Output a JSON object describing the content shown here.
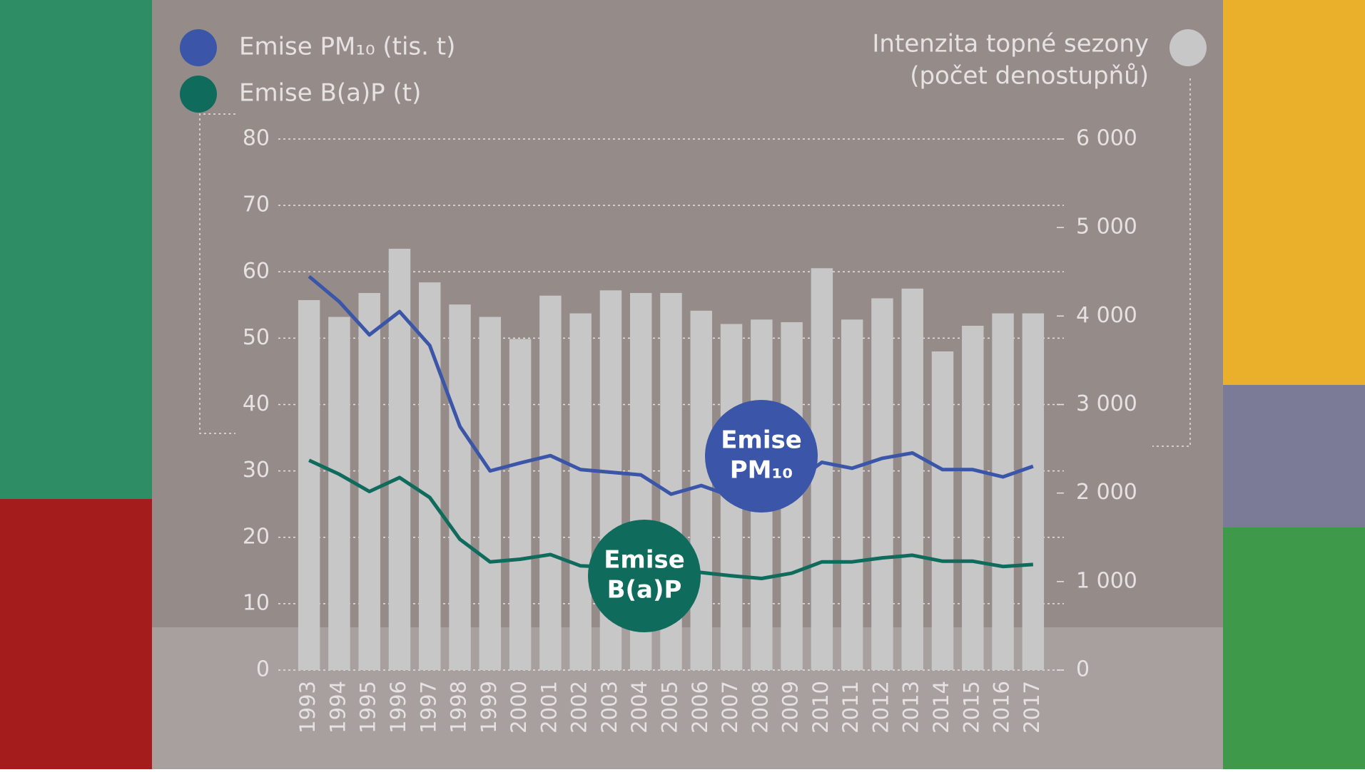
{
  "chart_data": {
    "type": "bar-line",
    "right_axis_title": [
      "Intenzita topné sezony",
      "(počet denostupňů)"
    ],
    "categories": [
      "1993",
      "1994",
      "1995",
      "1996",
      "1997",
      "1998",
      "1999",
      "2000",
      "2001",
      "2002",
      "2003",
      "2004",
      "2005",
      "2006",
      "2007",
      "2008",
      "2009",
      "2010",
      "2011",
      "2012",
      "2013",
      "2014",
      "2015",
      "2016",
      "2017"
    ],
    "series": [
      {
        "name": "Intenzita topné sezony",
        "kind": "bar",
        "axis": "y2",
        "color": "#c8c7c7",
        "values": [
          4180,
          3990,
          4260,
          4760,
          4380,
          4130,
          3990,
          3740,
          4230,
          4030,
          4290,
          4260,
          4260,
          4060,
          3910,
          3960,
          3930,
          4540,
          3960,
          4200,
          4310,
          3600,
          3890,
          4030,
          4030
        ]
      },
      {
        "name": "Emise PM₁₀ (tis. t)",
        "kind": "line",
        "color": "#3b56a8",
        "values": [
          59.3,
          55.5,
          50.5,
          54.0,
          48.9,
          36.7,
          30.0,
          31.2,
          32.3,
          30.2,
          29.8,
          29.4,
          26.5,
          27.8,
          26.2,
          26.5,
          28.0,
          31.3,
          30.4,
          31.9,
          32.7,
          30.2,
          30.2,
          29.1,
          30.7
        ]
      },
      {
        "name": "Emise B(a)P (t)",
        "kind": "line",
        "color": "#0f6b5c",
        "values": [
          31.6,
          29.5,
          26.9,
          29.0,
          26.0,
          19.7,
          16.3,
          16.7,
          17.4,
          15.7,
          15.5,
          15.0,
          15.0,
          14.7,
          14.2,
          13.8,
          14.6,
          16.3,
          16.3,
          16.9,
          17.3,
          16.4,
          16.4,
          15.6,
          15.9
        ]
      }
    ],
    "annotations": [
      {
        "series": 1,
        "lines": [
          "Emise",
          "PM₁₀"
        ]
      },
      {
        "series": 2,
        "lines": [
          "Emise",
          "B(a)P"
        ]
      }
    ],
    "ylim": [
      0,
      80
    ],
    "yticks": [
      0,
      10,
      20,
      30,
      40,
      50,
      60,
      70,
      80
    ],
    "y2lim": [
      0,
      6000
    ],
    "y2ticks": [
      0,
      {
        "value": 1000,
        "label": "1 000"
      },
      {
        "value": 2000,
        "label": "2 000"
      },
      {
        "value": 3000,
        "label": "3 000"
      },
      {
        "value": 4000,
        "label": "4 000"
      },
      {
        "value": 5000,
        "label": "5 000"
      },
      {
        "value": 6000,
        "label": "6 000"
      }
    ],
    "grid": true
  }
}
